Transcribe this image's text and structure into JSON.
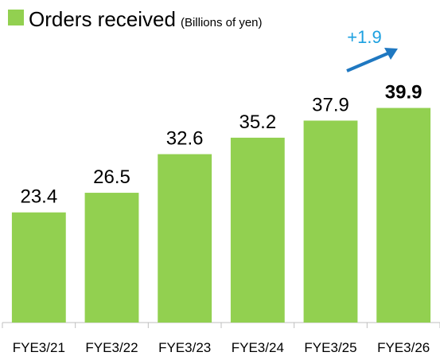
{
  "chart_data": {
    "type": "bar",
    "title": "Orders received",
    "subtitle": "(Billions of yen)",
    "categories": [
      "FYE3/21",
      "FYE3/22",
      "FYE3/23",
      "FYE3/24",
      "FYE3/25",
      "FYE3/26"
    ],
    "values": [
      23.4,
      26.5,
      32.6,
      35.2,
      37.9,
      39.9
    ],
    "color": "#92d050",
    "ylim": [
      6,
      45
    ],
    "bold_value_index": 5,
    "annotation": "+1.9",
    "annotation_color": "#1ca0e0",
    "arrow_color": "#1f78c1"
  }
}
